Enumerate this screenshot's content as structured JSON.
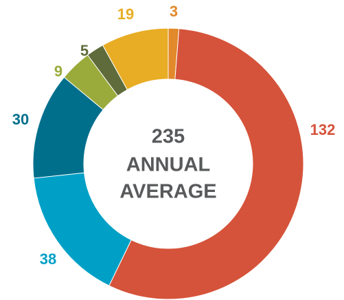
{
  "chart_data": {
    "type": "donut",
    "center_text": [
      "235",
      "ANNUAL",
      "AVERAGE"
    ],
    "values": [
      3,
      132,
      38,
      30,
      9,
      5,
      19
    ],
    "colors": [
      "#e2892b",
      "#d5533a",
      "#00a0c6",
      "#006f8c",
      "#9aab3c",
      "#5f6b3a",
      "#e8ad25"
    ]
  }
}
